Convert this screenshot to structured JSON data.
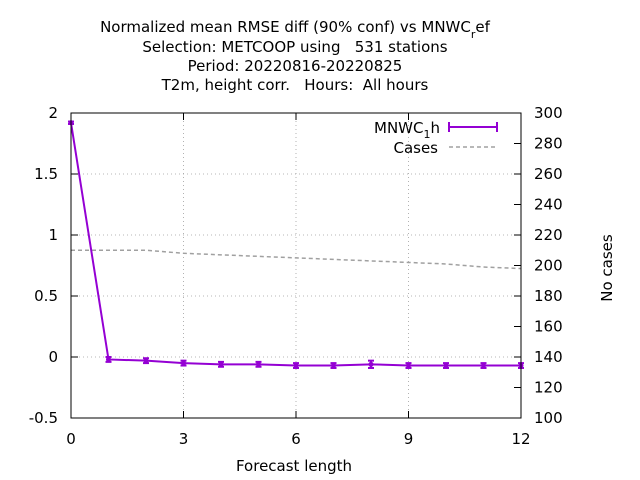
{
  "chart_data": {
    "type": "line",
    "title": {
      "line1_prefix": "Normalized mean RMSE diff (90% conf) vs MNWC",
      "line1_sub": "r",
      "line1_suffix": "ef",
      "line2": "Selection: METCOOP using   531 stations",
      "line3": "Period: 20220816-20220825",
      "line4": "T2m, height corr.   Hours:  All hours"
    },
    "xlabel": "Forecast length",
    "y2label": "No cases",
    "xlim": [
      0,
      12
    ],
    "ylim": [
      -0.5,
      2
    ],
    "y2lim": [
      100,
      300
    ],
    "xticks": [
      0,
      3,
      6,
      9,
      12
    ],
    "yticks": [
      -0.5,
      0,
      0.5,
      1,
      1.5,
      2
    ],
    "yticklabels": [
      "-0.5",
      "0",
      "0.5",
      "1",
      "1.5",
      "2"
    ],
    "y2ticks": [
      100,
      120,
      140,
      160,
      180,
      200,
      220,
      240,
      260,
      280,
      300
    ],
    "grid": true,
    "legend_position": "top-right",
    "x": [
      0,
      1,
      2,
      3,
      4,
      5,
      6,
      7,
      8,
      9,
      10,
      11,
      12
    ],
    "series": [
      {
        "name_prefix": "MNWC",
        "name_sub": "1",
        "name_suffix": "h",
        "axis": "left",
        "color": "#9400d3",
        "style": "solid-errorbars",
        "values": [
          1.92,
          -0.02,
          -0.03,
          -0.05,
          -0.06,
          -0.06,
          -0.07,
          -0.07,
          -0.06,
          -0.07,
          -0.07,
          -0.07,
          -0.07
        ],
        "error": [
          0.01,
          0.02,
          0.02,
          0.02,
          0.02,
          0.02,
          0.02,
          0.02,
          0.03,
          0.02,
          0.02,
          0.02,
          0.02
        ]
      },
      {
        "name": "Cases",
        "axis": "right",
        "color": "#a0a0a0",
        "style": "dashed",
        "values": [
          210,
          210,
          210,
          208,
          207,
          206,
          205,
          204,
          203,
          202,
          201,
          199,
          198
        ]
      }
    ]
  }
}
